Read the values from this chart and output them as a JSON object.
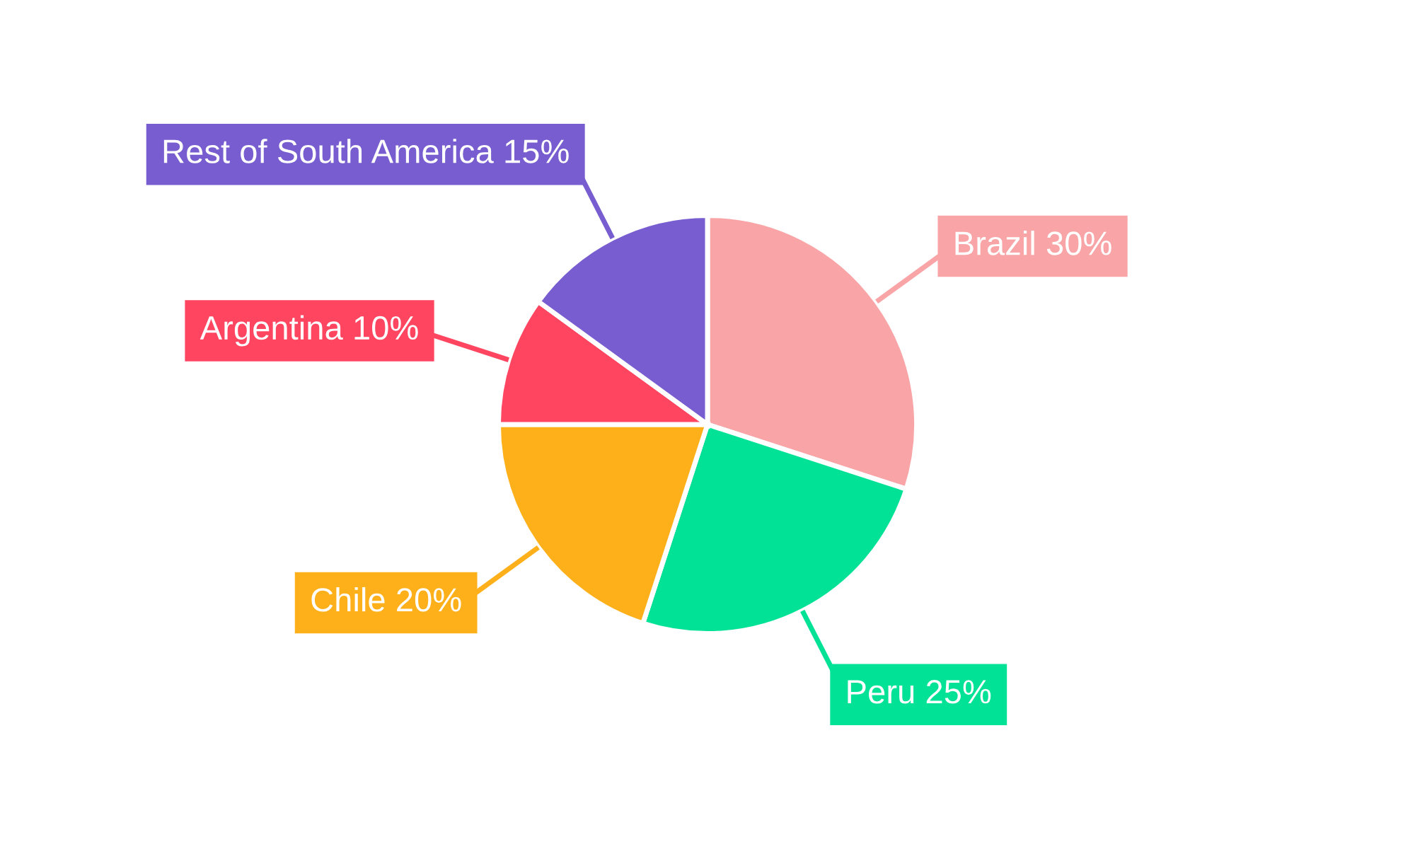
{
  "chart_data": {
    "type": "pie",
    "categories": [
      "Brazil",
      "Peru",
      "Chile",
      "Argentina",
      "Rest of South America"
    ],
    "values": [
      30,
      25,
      20,
      10,
      15
    ],
    "value_labels": [
      "30%",
      "25%",
      "20%",
      "10%",
      "15%"
    ],
    "colors": [
      "#f9a5a7",
      "#01e296",
      "#fdb01a",
      "#ff4560",
      "#775dd0"
    ],
    "legend": false
  }
}
